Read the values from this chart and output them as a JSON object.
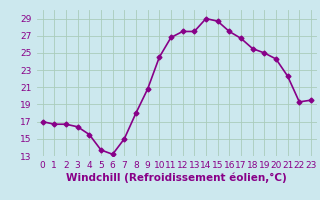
{
  "x": [
    0,
    1,
    2,
    3,
    4,
    5,
    6,
    7,
    8,
    9,
    10,
    11,
    12,
    13,
    14,
    15,
    16,
    17,
    18,
    19,
    20,
    21,
    22,
    23
  ],
  "y": [
    17.0,
    16.7,
    16.7,
    16.4,
    15.5,
    13.7,
    13.2,
    15.0,
    18.0,
    20.8,
    24.5,
    26.8,
    27.5,
    27.5,
    29.0,
    28.7,
    27.5,
    26.7,
    25.5,
    25.0,
    24.3,
    22.3,
    19.3,
    19.5
  ],
  "line_color": "#880088",
  "marker": "D",
  "marker_size": 2.5,
  "bg_color": "#cce8ee",
  "grid_color": "#aaccbb",
  "xlabel": "Windchill (Refroidissement éolien,°C)",
  "xlim": [
    -0.5,
    23.5
  ],
  "ylim": [
    13,
    30
  ],
  "yticks": [
    13,
    15,
    17,
    19,
    21,
    23,
    25,
    27,
    29
  ],
  "xtick_labels": [
    "0",
    "1",
    "2",
    "3",
    "4",
    "5",
    "6",
    "7",
    "8",
    "9",
    "10",
    "11",
    "12",
    "13",
    "14",
    "15",
    "16",
    "17",
    "18",
    "19",
    "20",
    "21",
    "22",
    "23"
  ],
  "xlabel_fontsize": 7.5,
  "tick_fontsize": 6.5,
  "line_width": 1.2
}
